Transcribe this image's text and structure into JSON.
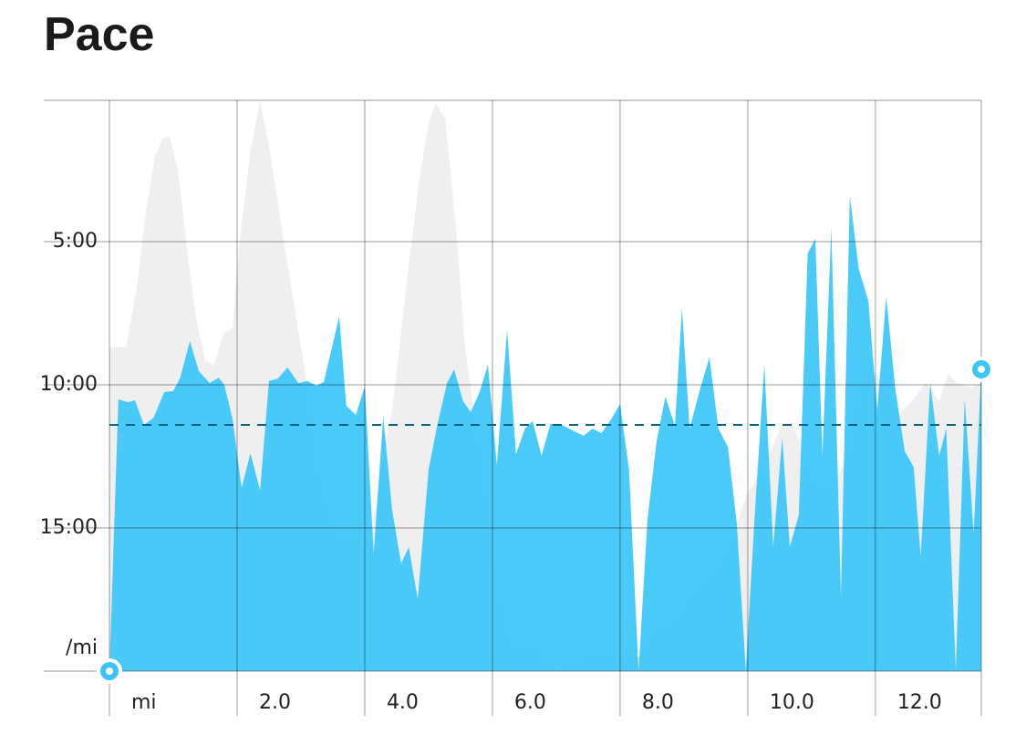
{
  "chart_data": {
    "type": "area",
    "title": "Pace",
    "xlim": [
      0,
      13.66
    ],
    "ylim": [
      0,
      20
    ],
    "y_inverted": true,
    "grid": true,
    "xticks": [
      {
        "value": 0,
        "label": "mi"
      },
      {
        "value": 2,
        "label": "2.0"
      },
      {
        "value": 4,
        "label": "4.0"
      },
      {
        "value": 6,
        "label": "6.0"
      },
      {
        "value": 8,
        "label": "8.0"
      },
      {
        "value": 10,
        "label": "10.0"
      },
      {
        "value": 12,
        "label": "12.0"
      }
    ],
    "yticks": [
      {
        "value": 5,
        "label": "5:00"
      },
      {
        "value": 10,
        "label": "10:00"
      },
      {
        "value": 15,
        "label": "15:00"
      },
      {
        "value": 20,
        "label": "/mi"
      }
    ],
    "average": 11.4,
    "average_color": "#0d6687",
    "series": [
      {
        "color": "#efefef",
        "x": [
          0,
          0.26,
          0.43,
          0.57,
          0.71,
          0.83,
          0.94,
          1.07,
          1.21,
          1.36,
          1.5,
          1.64,
          1.79,
          1.93,
          2.03,
          2.21,
          2.36,
          2.5,
          2.71,
          2.93,
          3.14,
          3.29,
          3.46,
          3.64,
          3.79,
          3.93,
          4.07,
          4.29,
          4.43,
          4.64,
          4.86,
          5.0,
          5.11,
          5.26,
          5.43,
          5.57,
          5.71,
          5.86,
          6.0,
          6.21,
          6.36,
          6.54,
          6.71,
          6.86,
          7.0,
          7.21,
          7.43,
          7.64,
          7.86,
          8.07,
          8.29,
          8.57,
          8.86,
          9.14,
          9.43,
          9.71,
          9.86,
          10.0,
          10.29,
          10.5,
          10.71,
          10.93,
          11.14,
          11.29,
          11.43,
          11.57,
          11.71,
          11.86,
          12.0,
          12.14,
          12.36,
          12.57,
          12.79,
          13.0,
          13.14,
          13.29,
          13.5,
          13.66
        ],
        "values": [
          8.69,
          8.69,
          6.59,
          3.98,
          2.04,
          1.4,
          1.34,
          2.45,
          5.16,
          7.71,
          9.14,
          9.3,
          8.18,
          8.03,
          5.16,
          1.82,
          0.06,
          1.66,
          4.68,
          7.71,
          10.57,
          13.12,
          14.87,
          15.35,
          15.51,
          15.35,
          15.67,
          12.48,
          10.89,
          6.75,
          2.77,
          0.86,
          0.16,
          0.7,
          4.52,
          8.66,
          10.89,
          12.8,
          15.67,
          18.54,
          19.33,
          19.01,
          19.33,
          19.81,
          20,
          19.81,
          19.49,
          19.33,
          19.49,
          19.33,
          19.49,
          18.54,
          18.22,
          17.26,
          16.62,
          15.67,
          14.71,
          13.76,
          12.8,
          11.53,
          11.37,
          12.8,
          13.6,
          13.44,
          13.12,
          12.48,
          10.57,
          9.94,
          9.62,
          9.94,
          11.05,
          10.57,
          9.94,
          10.57,
          9.62,
          9.94,
          10.1,
          9.94
        ]
      },
      {
        "color": "#3cc6f7",
        "x": [
          0,
          0.14,
          0.29,
          0.4,
          0.54,
          0.69,
          0.86,
          1.0,
          1.11,
          1.26,
          1.4,
          1.57,
          1.71,
          1.8,
          1.93,
          2.07,
          2.21,
          2.36,
          2.5,
          2.64,
          2.79,
          2.96,
          3.1,
          3.24,
          3.36,
          3.6,
          3.71,
          3.86,
          4.0,
          4.14,
          4.29,
          4.43,
          4.57,
          4.69,
          4.83,
          5.0,
          5.14,
          5.29,
          5.4,
          5.54,
          5.66,
          5.8,
          5.93,
          6.07,
          6.23,
          6.37,
          6.51,
          6.63,
          6.77,
          6.91,
          7.06,
          7.2,
          7.43,
          7.57,
          7.71,
          7.86,
          8.0,
          8.14,
          8.29,
          8.43,
          8.57,
          8.71,
          8.86,
          8.97,
          9.09,
          9.26,
          9.4,
          9.54,
          9.69,
          9.83,
          9.97,
          10.11,
          10.26,
          10.4,
          10.54,
          10.66,
          10.8,
          10.94,
          11.06,
          11.17,
          11.31,
          11.46,
          11.6,
          11.74,
          11.89,
          12.03,
          12.17,
          12.31,
          12.46,
          12.6,
          12.71,
          12.86,
          13.0,
          13.11,
          13.26,
          13.4,
          13.54,
          13.66
        ],
        "values": [
          20,
          10.51,
          10.61,
          10.54,
          11.4,
          11.15,
          10.25,
          10.22,
          9.75,
          8.47,
          9.52,
          9.94,
          9.75,
          10.0,
          11.21,
          13.6,
          12.39,
          13.69,
          9.87,
          9.78,
          9.39,
          9.94,
          9.87,
          10.03,
          9.9,
          7.61,
          10.73,
          11.05,
          10.06,
          15.89,
          11.11,
          14.39,
          16.24,
          15.67,
          17.48,
          12.96,
          11.37,
          9.94,
          9.46,
          10.57,
          10.96,
          10.25,
          9.3,
          12.8,
          8.09,
          12.42,
          11.53,
          11.27,
          12.48,
          11.37,
          11.37,
          11.53,
          11.78,
          11.53,
          11.69,
          11.21,
          10.67,
          12.96,
          20,
          14.71,
          12.01,
          10.41,
          11.43,
          7.32,
          11.53,
          10.1,
          9.04,
          11.53,
          12.17,
          14.87,
          20,
          14.55,
          9.3,
          15.67,
          11.85,
          15.67,
          14.55,
          5.41,
          4.9,
          12.48,
          4.52,
          17.42,
          3.41,
          5.96,
          7.07,
          10.89,
          6.91,
          10.1,
          12.32,
          12.87,
          15.99,
          9.94,
          12.48,
          11.53,
          20,
          10.48,
          15.19,
          9.46
        ]
      }
    ]
  }
}
